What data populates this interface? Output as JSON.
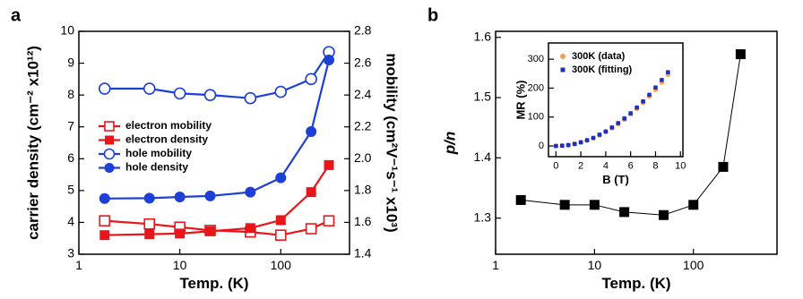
{
  "chart_data": [
    {
      "type": "line",
      "panel_label": "a",
      "xlabel": "Temp. (K)",
      "ylabel": "carrier density (cm⁻² x10¹²)",
      "y2label": "mobility (cm²V⁻¹s⁻¹ x10³)",
      "xscale": "log",
      "xlim": [
        1,
        480
      ],
      "xticks": [
        1,
        10,
        100
      ],
      "ylim": [
        3,
        10
      ],
      "yticks": [
        3,
        4,
        5,
        6,
        7,
        8,
        9,
        10
      ],
      "y2lim": [
        1.4,
        2.8
      ],
      "y2ticks": [
        1.4,
        1.6,
        1.8,
        {
          "value": 2,
          "label": "2.0"
        },
        2.2,
        2.4,
        2.6,
        2.8
      ],
      "legend": "center left",
      "x": [
        1.8,
        5,
        10,
        20,
        50,
        100,
        200,
        300
      ],
      "series": [
        {
          "name": "electron mobility",
          "color": "#e8161b",
          "marker": "square",
          "filled": false,
          "line": true,
          "axis": "y2",
          "values": [
            1.61,
            1.59,
            1.57,
            1.55,
            1.54,
            1.52,
            1.56,
            1.61
          ]
        },
        {
          "name": "electron density",
          "color": "#e8161b",
          "marker": "square",
          "filled": true,
          "line": true,
          "values": [
            3.6,
            3.63,
            3.65,
            3.72,
            3.82,
            4.07,
            4.95,
            5.8
          ]
        },
        {
          "name": "hole mobility",
          "color": "#1d3fd6",
          "marker": "circle",
          "filled": false,
          "line": true,
          "axis": "y2",
          "values": [
            2.44,
            2.44,
            2.41,
            2.4,
            2.38,
            2.42,
            2.5,
            2.67
          ]
        },
        {
          "name": "hole density",
          "color": "#1d3fd6",
          "marker": "circle",
          "filled": true,
          "line": true,
          "values": [
            4.75,
            4.76,
            4.8,
            4.83,
            4.95,
            5.4,
            6.85,
            9.1
          ]
        }
      ]
    },
    {
      "type": "line",
      "panel_label": "b",
      "xlabel": "Temp. (K)",
      "ylabel": "p/n",
      "xscale": "log",
      "xlim": [
        1,
        700
      ],
      "xticks": [
        1,
        10,
        100
      ],
      "ylim": [
        1.24,
        1.61
      ],
      "yticks": [
        1.3,
        1.4,
        1.5,
        1.6
      ],
      "x": [
        1.8,
        5,
        10,
        20,
        50,
        100,
        200,
        300
      ],
      "series": [
        {
          "name": null,
          "color": "#000000",
          "marker": "square",
          "filled": true,
          "line": true,
          "values": [
            1.33,
            1.322,
            1.322,
            1.31,
            1.305,
            1.322,
            1.385,
            1.572
          ]
        }
      ]
    },
    {
      "type": "scatter",
      "xlabel": "B (T)",
      "ylabel": "MR (%)",
      "xlim": [
        -0.6,
        10.2
      ],
      "xticks": [
        0,
        2,
        4,
        6,
        8,
        10
      ],
      "ylim": [
        -37,
        356
      ],
      "yticks": [
        0,
        100,
        200,
        300
      ],
      "legend": "upper left",
      "x": [
        0,
        0.5,
        1,
        1.5,
        2,
        2.5,
        3,
        3.5,
        4,
        4.5,
        5,
        5.5,
        6,
        6.5,
        7,
        7.5,
        8,
        8.5,
        9
      ],
      "series": [
        {
          "name": "300K (data)",
          "color": "#f5a04a",
          "marker": "circle",
          "filled": true,
          "line": false,
          "values": [
            0,
            1,
            3,
            7,
            12,
            19,
            27,
            37,
            49,
            62,
            76,
            92,
            110,
            129,
            150,
            172,
            195,
            220,
            247
          ]
        },
        {
          "name": "300K (fitting)",
          "color": "#1a2fc8",
          "marker": "square",
          "filled": true,
          "line": false,
          "values": [
            0,
            1,
            3,
            7,
            13,
            20,
            28,
            39,
            50,
            64,
            79,
            95,
            113,
            133,
            154,
            177,
            202,
            228,
            255
          ]
        }
      ]
    }
  ]
}
